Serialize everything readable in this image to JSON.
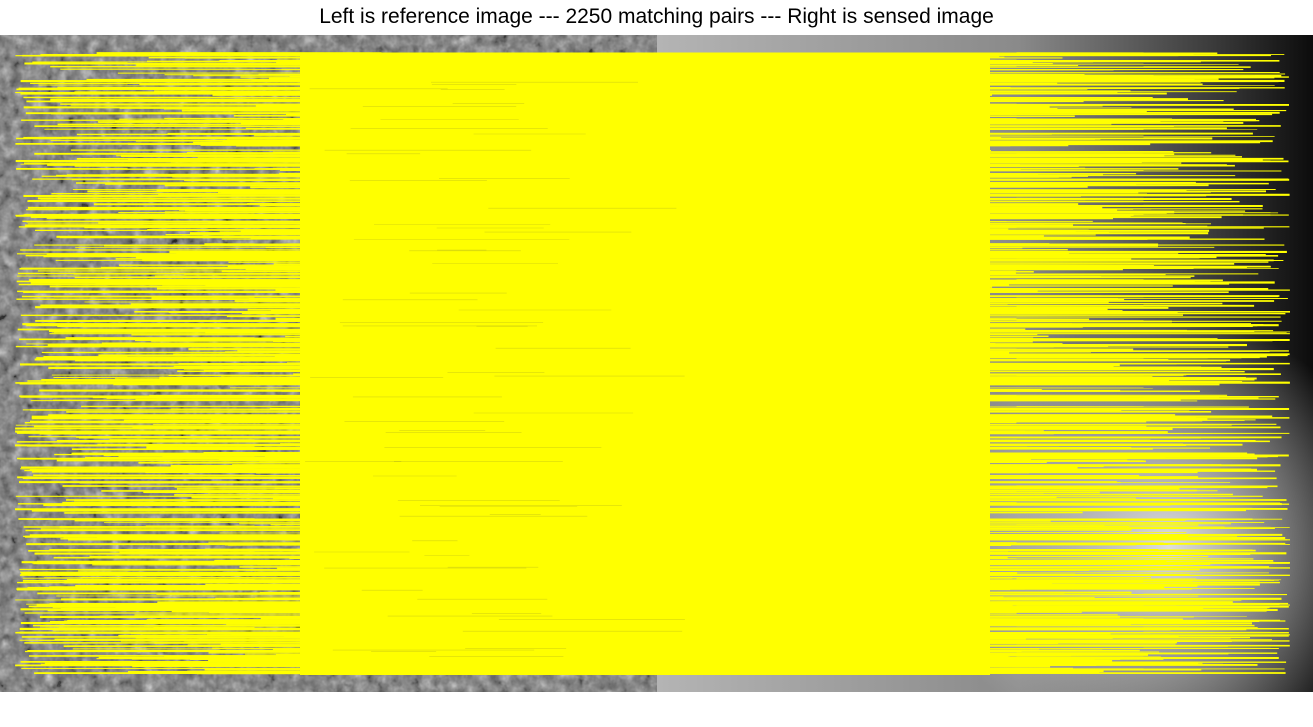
{
  "title": "Left is reference image --- 2250 matching pairs --- Right is sensed image",
  "matching_pairs": 2250,
  "colors": {
    "match_line": "#ffff00",
    "background": "#ffffff",
    "title_text": "#000000"
  }
}
